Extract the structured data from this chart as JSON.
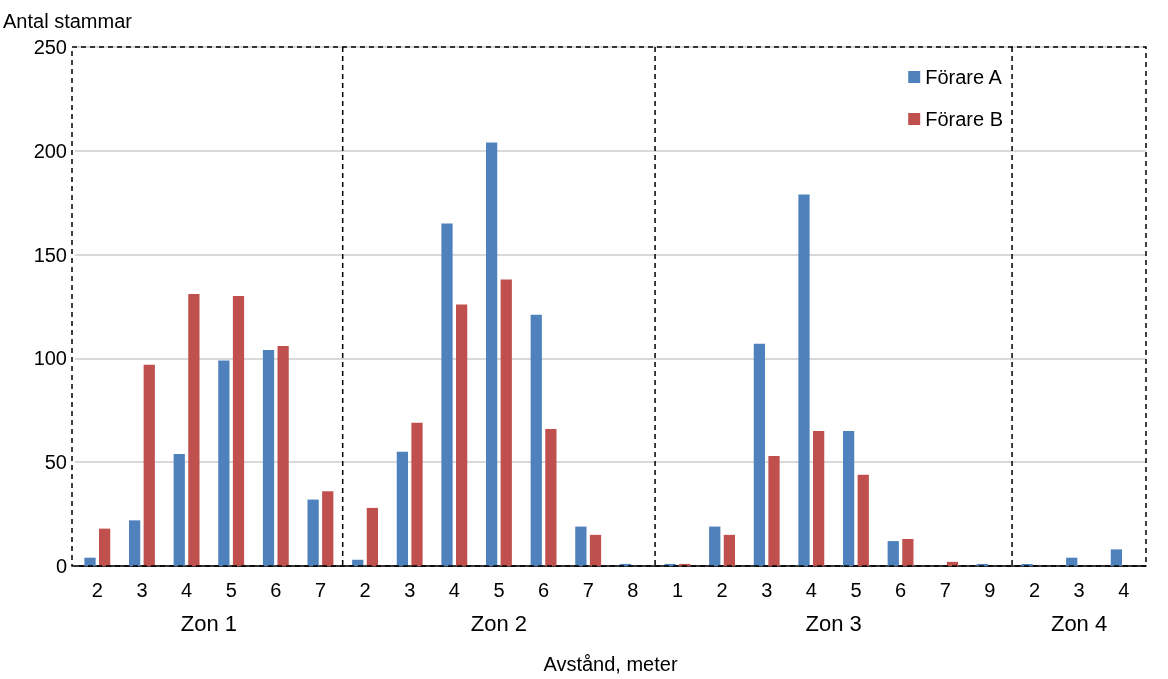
{
  "chart_data": {
    "type": "bar",
    "xlabel": "Avstånd, meter",
    "ylabel": "Antal stammar",
    "categories": [
      "2",
      "3",
      "4",
      "5",
      "6",
      "7",
      "2",
      "3",
      "4",
      "5",
      "6",
      "7",
      "8",
      "1",
      "2",
      "3",
      "4",
      "5",
      "6",
      "7",
      "9",
      "2",
      "3",
      "4"
    ],
    "series": [
      {
        "name": "Förare A",
        "color": "#4f81bd",
        "values": [
          4,
          22,
          54,
          99,
          104,
          32,
          3,
          55,
          165,
          204,
          121,
          19,
          1,
          1,
          19,
          107,
          179,
          65,
          12,
          0,
          1,
          1,
          4,
          8
        ]
      },
      {
        "name": "Förare B",
        "color": "#c0504d",
        "values": [
          18,
          97,
          131,
          130,
          106,
          36,
          28,
          69,
          126,
          138,
          66,
          15,
          0,
          1,
          15,
          53,
          65,
          44,
          13,
          2,
          0,
          0,
          0,
          0
        ]
      }
    ],
    "annotations": [
      "Zon 1",
      "Zon 2",
      "Zon 3",
      "Zon 4"
    ],
    "ylim": [
      0,
      250
    ],
    "yticks": [
      0,
      50,
      100,
      150,
      200,
      250
    ],
    "grid": "y",
    "legend": "top right"
  }
}
